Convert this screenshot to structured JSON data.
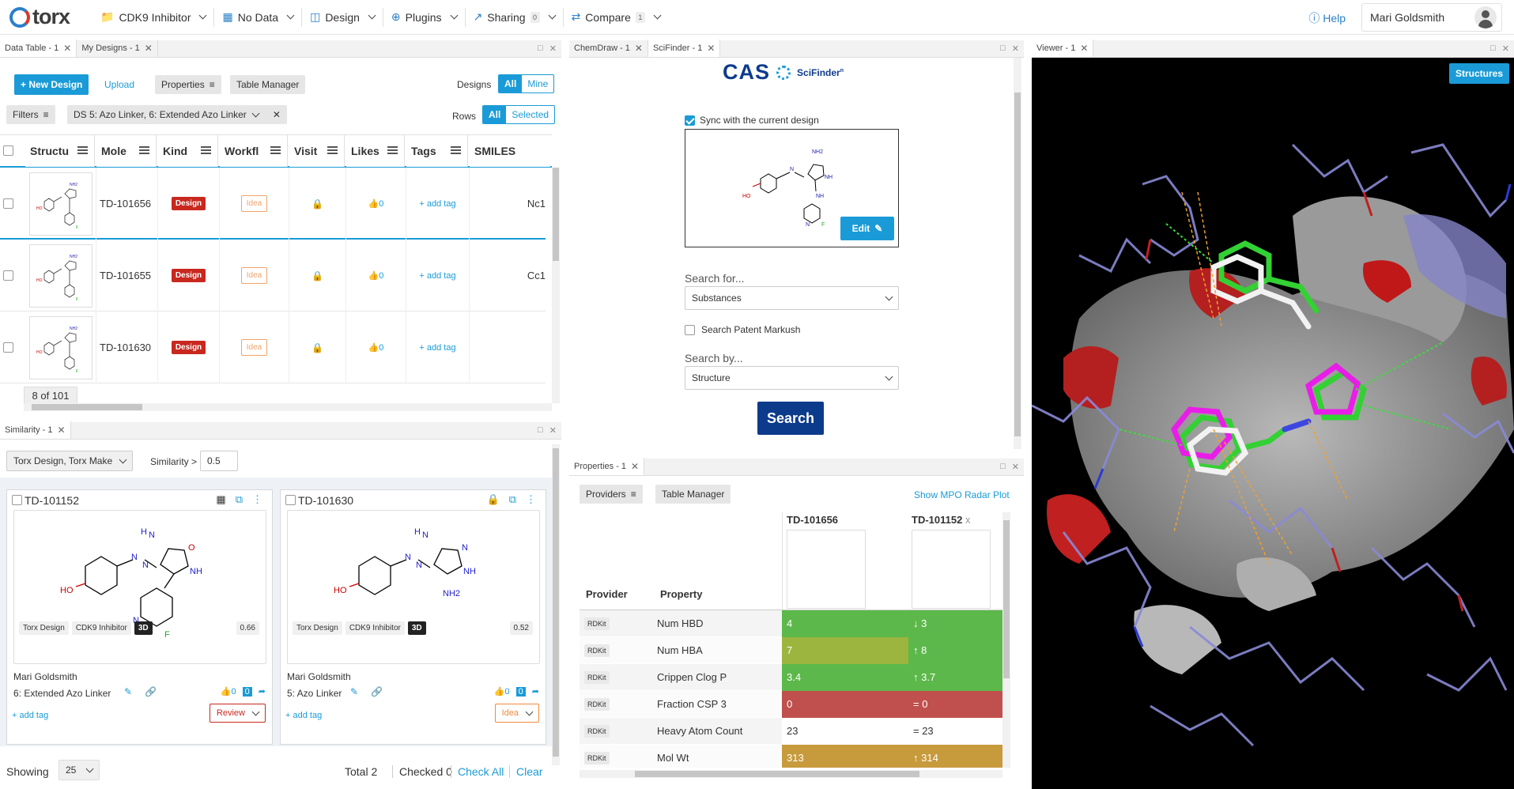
{
  "app": {
    "logo_text": "torx"
  },
  "nav": {
    "project": "CDK9 Inhibitor",
    "data": "No Data",
    "design": "Design",
    "plugins": "Plugins",
    "sharing": "Sharing",
    "sharing_count": "0",
    "compare": "Compare",
    "compare_count": "1",
    "help": "Help",
    "user": "Mari Goldsmith"
  },
  "data_table": {
    "tabs": [
      "Data Table - 1",
      "My Designs - 1"
    ],
    "new_design": "+ New Design",
    "upload": "Upload",
    "properties": "Properties",
    "table_manager": "Table Manager",
    "designs_label": "Designs",
    "designs_all": "All",
    "designs_mine": "Mine",
    "filters": "Filters",
    "filter_value": "DS 5: Azo Linker, 6: Extended Azo Linker",
    "rows_label": "Rows",
    "rows_all": "All",
    "rows_selected": "Selected",
    "columns": [
      "Structu",
      "Mole",
      "Kind",
      "Workfl",
      "Visit",
      "Likes",
      "Tags",
      "SMILES"
    ],
    "rows": [
      {
        "id": "TD-101656",
        "kind": "Design",
        "workflow": "Idea",
        "likes": "0",
        "tag": "+ add tag",
        "smiles": "Nc1"
      },
      {
        "id": "TD-101655",
        "kind": "Design",
        "workflow": "Idea",
        "likes": "0",
        "tag": "+ add tag",
        "smiles": "Cc1"
      },
      {
        "id": "TD-101630",
        "kind": "Design",
        "workflow": "Idea",
        "likes": "0",
        "tag": "+ add tag",
        "smiles": ""
      }
    ],
    "pager": "8 of 101"
  },
  "similarity": {
    "tab": "Similarity - 1",
    "source": "Torx Design, Torx Make",
    "sim_label": "Similarity >",
    "sim_value": "0.5",
    "cards": [
      {
        "id": "TD-101152",
        "chips": [
          "Torx Design",
          "CDK9 Inhibitor",
          "3D"
        ],
        "score": "0.66",
        "author": "Mari Goldsmith",
        "series": "6: Extended Azo Linker",
        "likes": "0",
        "comments": "0",
        "add_tag": "+ add tag",
        "status": "Review"
      },
      {
        "id": "TD-101630",
        "chips": [
          "Torx Design",
          "CDK9 Inhibitor",
          "3D"
        ],
        "score": "0.52",
        "author": "Mari Goldsmith",
        "series": "5: Azo Linker",
        "likes": "0",
        "comments": "0",
        "add_tag": "+ add tag",
        "status": "Idea"
      }
    ],
    "showing_label": "Showing",
    "showing_value": "25",
    "total": "Total 2",
    "checked": "Checked 0",
    "check_all": "Check All",
    "clear": "Clear"
  },
  "scifinder": {
    "tabs": [
      "ChemDraw - 1",
      "SciFinder - 1"
    ],
    "brand": "CAS",
    "brand_sub": "SciFinder",
    "brand_sup": "n",
    "sync_label": "Sync with the current design",
    "sync_checked": true,
    "edit": "Edit",
    "search_for_label": "Search for...",
    "search_for_value": "Substances",
    "patent_label": "Search Patent Markush",
    "search_by_label": "Search by...",
    "search_by_value": "Structure",
    "search_button": "Search"
  },
  "properties": {
    "tab": "Properties - 1",
    "providers": "Providers",
    "table_manager": "Table Manager",
    "mpo": "Show MPO Radar Plot",
    "col_provider": "Provider",
    "col_property": "Property",
    "mol1": "TD-101656",
    "mol2": "TD-101152",
    "mol2_close": "x",
    "rows": [
      {
        "provider": "RDKit",
        "property": "Num HBD",
        "v1": "4",
        "v2": "↓ 3",
        "c1": "#5cb84a",
        "c2": "#5cb84a"
      },
      {
        "provider": "RDKit",
        "property": "Num HBA",
        "v1": "7",
        "v2": "↑ 8",
        "c1": "#9bb53f",
        "c2": "#5cb84a"
      },
      {
        "provider": "RDKit",
        "property": "Crippen Clog P",
        "v1": "3.4",
        "v2": "↑ 3.7",
        "c1": "#5cb84a",
        "c2": "#5cb84a"
      },
      {
        "provider": "RDKit",
        "property": "Fraction CSP 3",
        "v1": "0",
        "v2": "= 0",
        "c1": "#c0504d",
        "c2": "#c0504d"
      },
      {
        "provider": "RDKit",
        "property": "Heavy Atom Count",
        "v1": "23",
        "v2": "= 23",
        "c1": "#ffffff",
        "c2": "#ffffff"
      },
      {
        "provider": "RDKit",
        "property": "Mol Wt",
        "v1": "313",
        "v2": "↑ 314",
        "c1": "#c79a3c",
        "c2": "#c79a3c"
      }
    ]
  },
  "viewer": {
    "tab": "Viewer - 1",
    "structures": "Structures"
  },
  "colors": {
    "accent": "#1a9bd7",
    "design_red": "#c8281e",
    "idea_orange": "#f2a36b",
    "search_navy": "#0d3b8c"
  }
}
